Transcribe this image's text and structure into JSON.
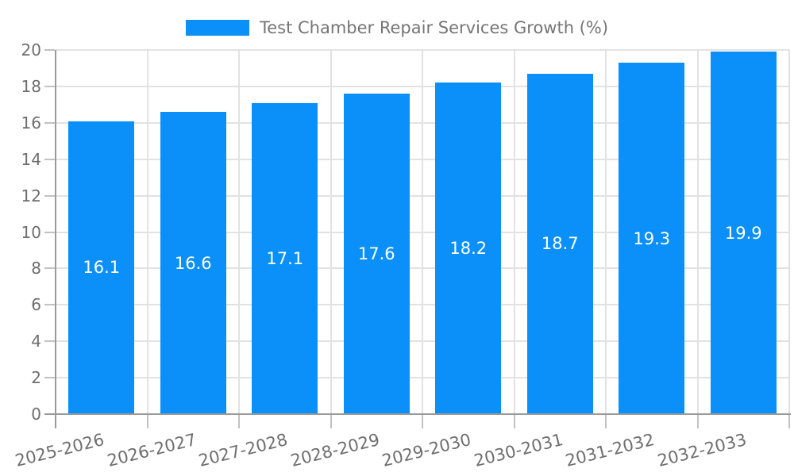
{
  "chart_data": {
    "type": "bar",
    "title": "Test Chamber Repair Services Growth (%)",
    "categories": [
      "2025-2026",
      "2026-2027",
      "2027-2028",
      "2028-2029",
      "2029-2030",
      "2030-2031",
      "2031-2032",
      "2032-2033"
    ],
    "values": [
      16.1,
      16.6,
      17.1,
      17.6,
      18.2,
      18.7,
      19.3,
      19.9
    ],
    "value_labels": [
      "16.1",
      "16.6",
      "17.1",
      "17.6",
      "18.2",
      "18.7",
      "19.3",
      "19.9"
    ],
    "xlabel": "",
    "ylabel": "",
    "ylim": [
      0,
      20
    ],
    "ytick_step": 2,
    "yticks": [
      0,
      2,
      4,
      6,
      8,
      10,
      12,
      14,
      16,
      18,
      20
    ],
    "x_label_rotation_deg": -14,
    "legend_position": "top-center",
    "grid": "horizontal and vertical light gray gridlines, bars drawn in front",
    "value_label_position": "centered inside bar",
    "colors": {
      "bar": "#0A90F8",
      "bar_value_text": "#FFFFFF",
      "axis_text": "#6E6E6E",
      "legend_text": "#757575",
      "grid_line": "#E2E2E2",
      "axis_line": "#9A9A9A",
      "tick": "#C2C2C2",
      "background": "#FFFFFF"
    }
  }
}
